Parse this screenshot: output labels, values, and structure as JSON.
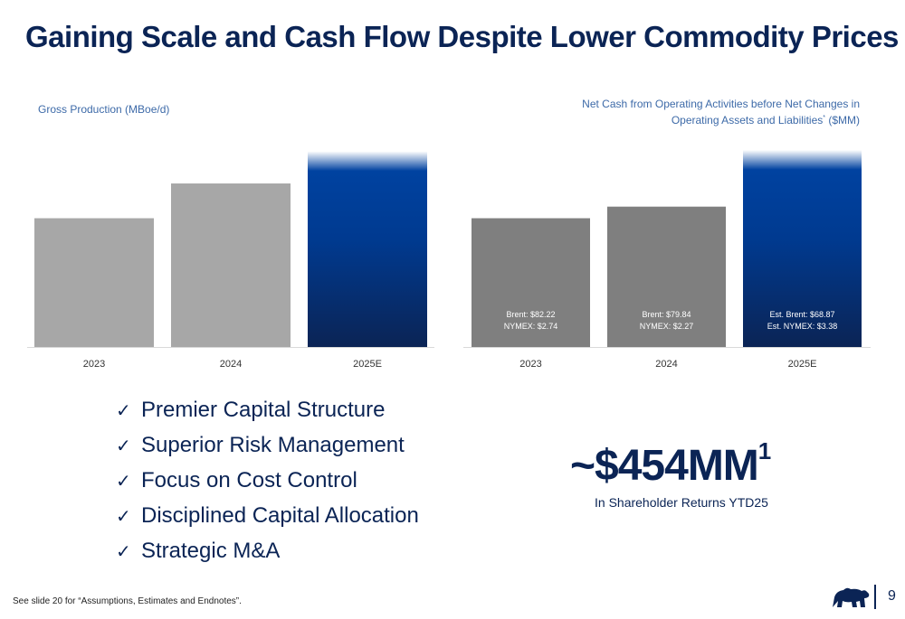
{
  "title": "Gaining Scale and Cash Flow Despite Lower Commodity Prices",
  "colors": {
    "navy": "#0b2455",
    "blue": "#0042a0",
    "light_gray": "#a7a7a7",
    "dark_gray": "#7f7f7f",
    "accent_text": "#3d6aa8"
  },
  "chart_data": [
    {
      "type": "bar",
      "title": "Gross Production (MBoe/d)",
      "categories": [
        "2023",
        "2024",
        "2025E"
      ],
      "values": [
        100,
        127,
        152
      ],
      "ylim": [
        0,
        160
      ],
      "highlight_category": "2025E",
      "grid": false
    },
    {
      "type": "bar",
      "title_main": "Net Cash from Operating Activities before Net Changes in Operating Assets and Liabilities",
      "title_sup": "*",
      "title_units": "($MM)",
      "categories": [
        "2023",
        "2024",
        "2025E"
      ],
      "values": [
        100,
        109,
        153
      ],
      "ylim": [
        0,
        160
      ],
      "highlight_category": "2025E",
      "grid": false,
      "bar_annotations": [
        [
          "Brent: $82.22",
          "NYMEX: $2.74"
        ],
        [
          "Brent: $79.84",
          "NYMEX: $2.27"
        ],
        [
          "Est. Brent: $68.87",
          "Est. NYMEX: $3.38"
        ]
      ]
    }
  ],
  "bullets": [
    "Premier Capital Structure",
    "Superior Risk Management",
    "Focus on Cost Control",
    "Disciplined Capital Allocation",
    "Strategic M&A"
  ],
  "check_glyph": "✓",
  "highlight": {
    "value": "~$454MM",
    "footnote_mark": "1",
    "caption": "In Shareholder Returns YTD25"
  },
  "footnote": "See slide 20 for “Assumptions, Estimates and Endnotes”.",
  "page_number": "9"
}
